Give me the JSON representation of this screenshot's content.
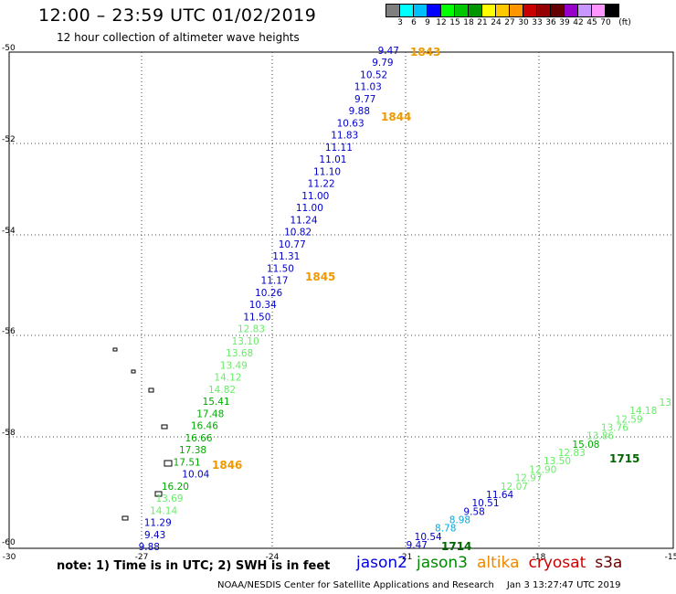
{
  "header": {
    "title": "12:00 – 23:59 UTC 01/02/2019",
    "subtitle": "12 hour collection of altimeter wave heights"
  },
  "legend": {
    "unit": "(ft)",
    "colors": [
      "#7f7f7f",
      "#00ffff",
      "#00bfff",
      "#0000ff",
      "#00ff00",
      "#00c800",
      "#009600",
      "#ffff00",
      "#ffc800",
      "#ff9600",
      "#c80000",
      "#960000",
      "#640000",
      "#9600c8",
      "#c896ff",
      "#ff96ff",
      "#000000"
    ],
    "labels": [
      "3",
      "6",
      "9",
      "12",
      "15",
      "18",
      "21",
      "24",
      "27",
      "30",
      "33",
      "36",
      "39",
      "42",
      "45",
      "70"
    ]
  },
  "map": {
    "lat_labels": [
      "-50",
      "-52",
      "-54",
      "-56",
      "-58",
      "-60"
    ],
    "lon_labels": [
      "-30",
      "-27",
      "-24",
      "-21",
      "-18",
      "-15"
    ],
    "track_colors": {
      "jason2": "#0000dd",
      "jason3": "#008800",
      "altika": "#ee8800",
      "cryosat": "#cc0000",
      "s3a": "#660000"
    },
    "level_colors": {
      "d_blue": "#0000cc",
      "cyan": "#00aadd",
      "l_green": "#66ee66",
      "green": "#00aa00",
      "orange": "#ee9900",
      "d_green": "#006600"
    },
    "track_a": [
      {
        "v": "9.47",
        "c": "d_blue"
      },
      {
        "v": "9.79",
        "c": "d_blue"
      },
      {
        "v": "10.52",
        "c": "d_blue"
      },
      {
        "v": "11.03",
        "c": "d_blue"
      },
      {
        "v": "9.77",
        "c": "d_blue"
      },
      {
        "v": "9.88",
        "c": "d_blue"
      },
      {
        "v": "10.63",
        "c": "d_blue"
      },
      {
        "v": "11.83",
        "c": "d_blue"
      },
      {
        "v": "11.11",
        "c": "d_blue"
      },
      {
        "v": "11.01",
        "c": "d_blue"
      },
      {
        "v": "11.10",
        "c": "d_blue"
      },
      {
        "v": "11.22",
        "c": "d_blue"
      },
      {
        "v": "11.00",
        "c": "d_blue"
      },
      {
        "v": "11.00",
        "c": "d_blue"
      },
      {
        "v": "11.24",
        "c": "d_blue"
      },
      {
        "v": "10.82",
        "c": "d_blue"
      },
      {
        "v": "10.77",
        "c": "d_blue"
      },
      {
        "v": "11.31",
        "c": "d_blue"
      },
      {
        "v": "11.50",
        "c": "d_blue"
      },
      {
        "v": "11.17",
        "c": "d_blue"
      },
      {
        "v": "10.26",
        "c": "d_blue"
      },
      {
        "v": "10.34",
        "c": "d_blue"
      },
      {
        "v": "11.50",
        "c": "d_blue"
      },
      {
        "v": "12.83",
        "c": "l_green"
      },
      {
        "v": "13.10",
        "c": "l_green"
      },
      {
        "v": "13.68",
        "c": "l_green"
      },
      {
        "v": "13.49",
        "c": "l_green"
      },
      {
        "v": "14.12",
        "c": "l_green"
      },
      {
        "v": "14.82",
        "c": "l_green"
      },
      {
        "v": "15.41",
        "c": "green"
      },
      {
        "v": "17.48",
        "c": "green"
      },
      {
        "v": "16.46",
        "c": "green"
      },
      {
        "v": "16.66",
        "c": "green"
      },
      {
        "v": "17.38",
        "c": "green"
      },
      {
        "v": "17.51",
        "c": "green"
      },
      {
        "v": "10.04",
        "c": "d_blue"
      },
      {
        "v": "16.20",
        "c": "green"
      },
      {
        "v": "13.69",
        "c": "l_green"
      },
      {
        "v": "14.14",
        "c": "l_green"
      },
      {
        "v": "11.29",
        "c": "d_blue"
      },
      {
        "v": "9.43",
        "c": "d_blue"
      },
      {
        "v": "9.88",
        "c": "d_blue"
      }
    ],
    "track_b": [
      {
        "v": "9.47",
        "c": "d_blue"
      },
      {
        "v": "10.54",
        "c": "d_blue"
      },
      {
        "v": "8.78",
        "c": "cyan"
      },
      {
        "v": "8.98",
        "c": "cyan"
      },
      {
        "v": "9.58",
        "c": "d_blue"
      },
      {
        "v": "10.51",
        "c": "d_blue"
      },
      {
        "v": "11.64",
        "c": "d_blue"
      },
      {
        "v": "12.07",
        "c": "l_green"
      },
      {
        "v": "12.97",
        "c": "l_green"
      },
      {
        "v": "12.90",
        "c": "l_green"
      },
      {
        "v": "13.50",
        "c": "l_green"
      },
      {
        "v": "12.83",
        "c": "l_green"
      },
      {
        "v": "15.08",
        "c": "green"
      },
      {
        "v": "13.86",
        "c": "l_green"
      },
      {
        "v": "13.76",
        "c": "l_green"
      },
      {
        "v": "12.59",
        "c": "l_green"
      },
      {
        "v": "14.18",
        "c": "l_green"
      },
      {
        "v": "13",
        "c": "l_green"
      }
    ],
    "time_labels": [
      {
        "t": "1843",
        "c": "orange"
      },
      {
        "t": "1844",
        "c": "orange"
      },
      {
        "t": "1845",
        "c": "orange"
      },
      {
        "t": "1846",
        "c": "orange"
      },
      {
        "t": "1715",
        "c": "d_green"
      },
      {
        "t": "1714",
        "c": "d_green"
      }
    ]
  },
  "footer": {
    "note": "note:  1) Time is in UTC;  2) SWH is in feet",
    "satellites": [
      {
        "name": "jason2",
        "color": "#0000dd"
      },
      {
        "name": "jason3",
        "color": "#008800"
      },
      {
        "name": "altika",
        "color": "#ee8800"
      },
      {
        "name": "cryosat",
        "color": "#cc0000"
      },
      {
        "name": "s3a",
        "color": "#660000"
      }
    ],
    "credit": "NOAA/NESDIS Center for Satellite Applications and Research",
    "timestamp": "Jan  3 13:27:47 UTC 2019"
  }
}
